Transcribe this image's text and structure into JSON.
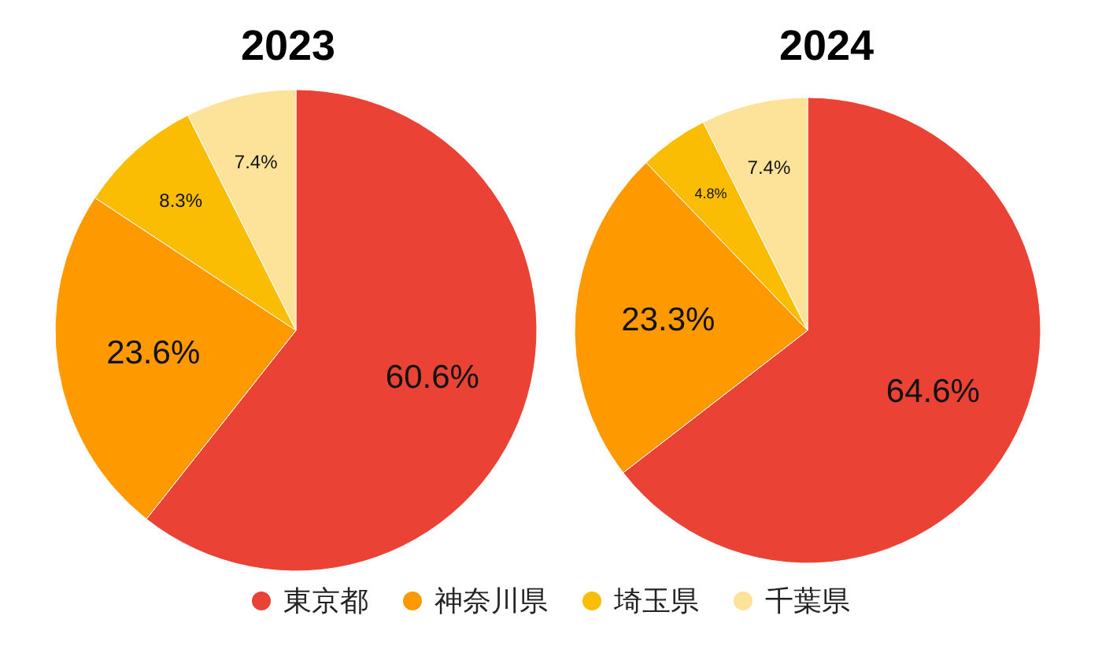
{
  "chart_data": [
    {
      "type": "pie",
      "title": "2023",
      "categories": [
        null,
        null,
        null,
        null
      ],
      "values": [
        60.6,
        23.6,
        8.3,
        7.4
      ],
      "colors": [
        "#ea4335",
        "#ff9900",
        "#fbbc04",
        "#fde39a"
      ],
      "value_labels": [
        "60.6%",
        "23.6%",
        "8.3%",
        "7.4%"
      ]
    },
    {
      "type": "pie",
      "title": "2024",
      "categories": [
        "東京都",
        "神奈川県",
        "埼玉県",
        "千葉県"
      ],
      "values": [
        64.6,
        23.3,
        4.8,
        7.4
      ],
      "colors": [
        "#ea4335",
        "#ff9900",
        "#fbbc04",
        "#fde39a"
      ],
      "value_labels": [
        "64.6%",
        "23.3%",
        "4.8%",
        "7.4%"
      ],
      "legend": "bottom"
    }
  ]
}
